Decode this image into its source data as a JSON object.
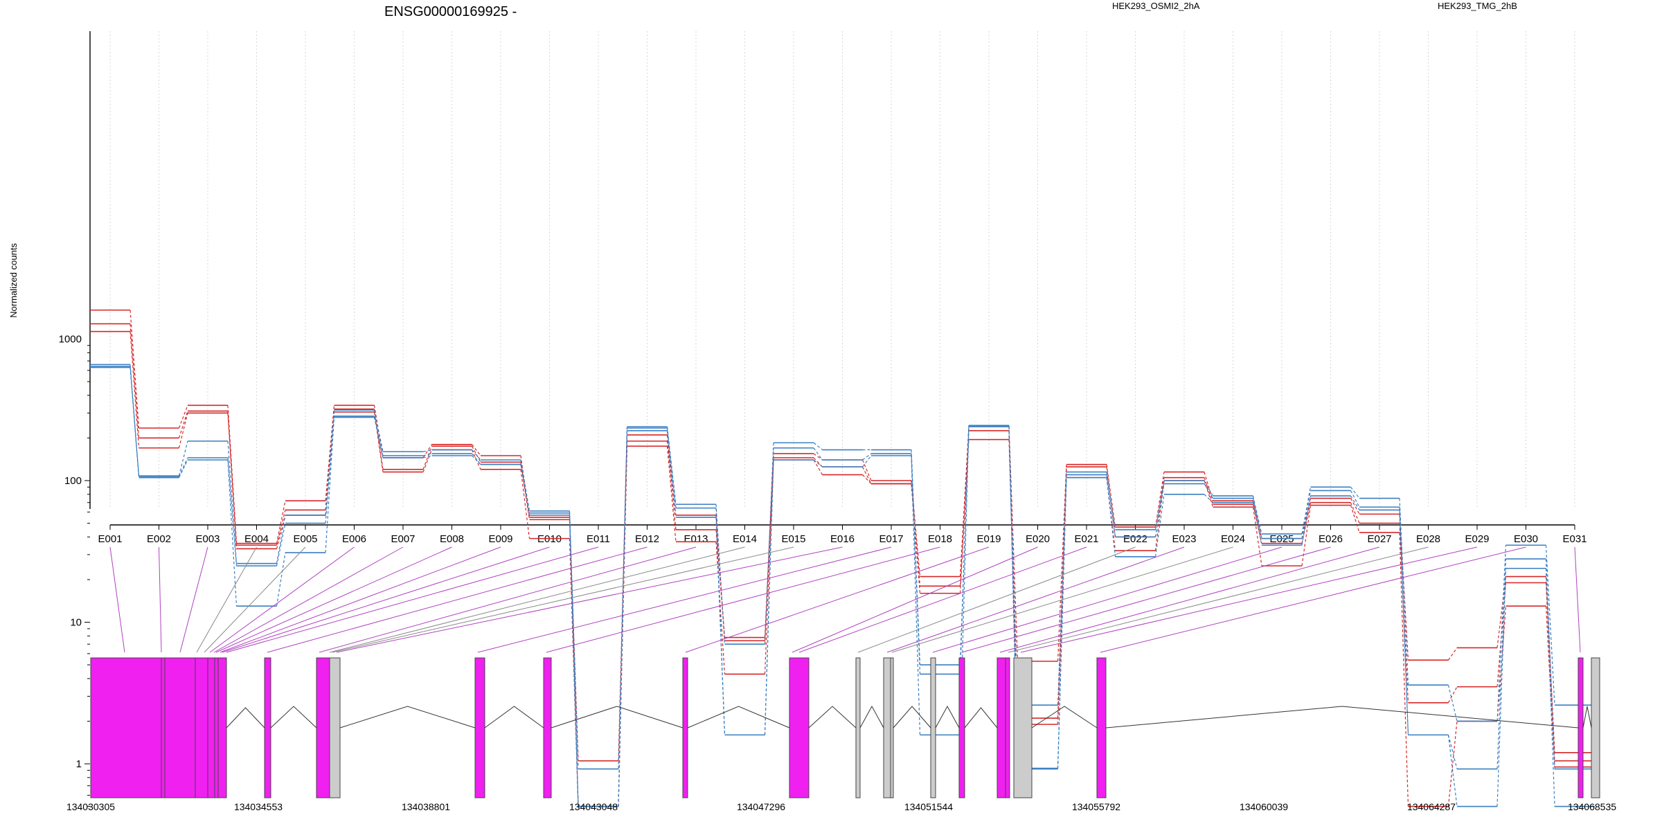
{
  "chart_data": {
    "type": "line",
    "title": "ENSG00000169925 -",
    "ylabel": "Normalized counts",
    "yscale": "log",
    "ylim": [
      0.5,
      2200
    ],
    "yticks": [
      1,
      10,
      100,
      1000
    ],
    "ytick_labels": [
      "1",
      "10",
      "100",
      "1000"
    ],
    "grid": "vertical, dotted",
    "legend_placement": "top",
    "categories": [
      "E001",
      "E002",
      "E003",
      "E004",
      "E005",
      "E006",
      "E007",
      "E008",
      "E009",
      "E010",
      "E011",
      "E012",
      "E013",
      "E014",
      "E015",
      "E016",
      "E017",
      "E018",
      "E019",
      "E020",
      "E021",
      "E022",
      "E023",
      "E024",
      "E025",
      "E026",
      "E027",
      "E028",
      "E029",
      "E030",
      "E031"
    ],
    "groups": [
      {
        "name": "HEK293_OSMI2_2hA",
        "color": "#d62728",
        "replicates": [
          [
            1600,
            235,
            340,
            36,
            72,
            340,
            145,
            180,
            150,
            55,
            1.05,
            210,
            45,
            7.8,
            155,
            140,
            100,
            21,
            240,
            5.3,
            130,
            47,
            115,
            72,
            39,
            75,
            58,
            5.4,
            6.6,
            21,
            1.2
          ],
          [
            1280,
            200,
            310,
            35,
            62,
            320,
            120,
            175,
            135,
            53,
            0.5,
            190,
            57,
            7.4,
            145,
            125,
            95,
            18,
            225,
            2.1,
            125,
            40,
            105,
            68,
            36,
            70,
            50,
            2.7,
            3.5,
            19,
            1.05
          ],
          [
            1130,
            170,
            300,
            33,
            57,
            305,
            115,
            165,
            120,
            39,
            0.5,
            175,
            37,
            4.3,
            140,
            110,
            95,
            16,
            195,
            1.9,
            105,
            32,
            100,
            65,
            25,
            67,
            43,
            0.5,
            2.0,
            13,
            0.95
          ]
        ]
      },
      {
        "name": "HEK293_TMG_2hB",
        "color": "#3a7fc1",
        "replicates": [
          [
            660,
            108,
            190,
            26,
            57,
            315,
            160,
            165,
            140,
            61,
            0.92,
            240,
            68,
            7.0,
            185,
            165,
            165,
            5.0,
            245,
            2.6,
            115,
            45,
            100,
            78,
            42,
            90,
            75,
            3.6,
            2.0,
            35,
            2.6
          ],
          [
            640,
            107,
            145,
            25,
            50,
            285,
            150,
            155,
            130,
            59,
            0.5,
            235,
            64,
            1.6,
            170,
            140,
            155,
            4.3,
            245,
            0.93,
            110,
            40,
            95,
            75,
            39,
            85,
            65,
            1.6,
            0.92,
            28,
            0.92
          ],
          [
            630,
            105,
            140,
            13,
            31,
            280,
            145,
            150,
            130,
            57,
            0.5,
            225,
            55,
            1.6,
            140,
            125,
            150,
            1.6,
            240,
            0.92,
            105,
            29,
            80,
            70,
            35,
            78,
            62,
            1.6,
            0.5,
            24,
            0.5
          ]
        ]
      }
    ],
    "gene_model": {
      "coordinate_ticks": [
        "134030305",
        "134034553",
        "134038801",
        "134043048",
        "134047296",
        "134051544",
        "134055792",
        "134060039",
        "134064287",
        "134068535"
      ],
      "exon_color": "#f020f0",
      "other_color": "#cccccc"
    }
  }
}
